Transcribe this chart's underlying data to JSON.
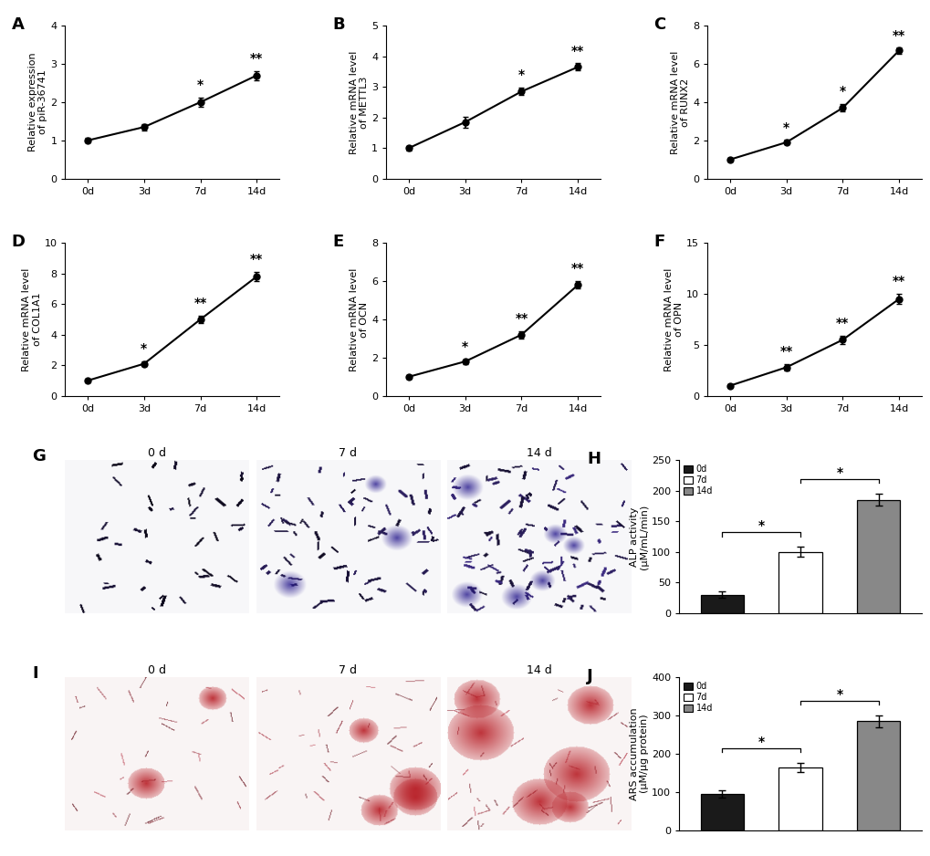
{
  "panels": {
    "A": {
      "label": "A",
      "ylabel": "Relative expression\nof piR-36741",
      "x": [
        0,
        1,
        2,
        3
      ],
      "xtick_labels": [
        "0d",
        "3d",
        "7d",
        "14d"
      ],
      "y": [
        1.0,
        1.35,
        2.0,
        2.7
      ],
      "yerr": [
        0.06,
        0.08,
        0.12,
        0.12
      ],
      "ylim": [
        0,
        4
      ],
      "yticks": [
        0,
        1,
        2,
        3,
        4
      ],
      "sig": [
        "",
        "",
        "*",
        "**"
      ]
    },
    "B": {
      "label": "B",
      "ylabel": "Relative mRNA level\nof METTL3",
      "x": [
        0,
        1,
        2,
        3
      ],
      "xtick_labels": [
        "0d",
        "3d",
        "7d",
        "14d"
      ],
      "y": [
        1.0,
        1.85,
        2.85,
        3.65
      ],
      "yerr": [
        0.07,
        0.18,
        0.12,
        0.12
      ],
      "ylim": [
        0,
        5
      ],
      "yticks": [
        0,
        1,
        2,
        3,
        4,
        5
      ],
      "sig": [
        "",
        "",
        "*",
        "**"
      ]
    },
    "C": {
      "label": "C",
      "ylabel": "Relative mRNA level\nof RUNX2",
      "x": [
        0,
        1,
        2,
        3
      ],
      "xtick_labels": [
        "0d",
        "3d",
        "7d",
        "14d"
      ],
      "y": [
        1.0,
        1.9,
        3.7,
        6.7
      ],
      "yerr": [
        0.1,
        0.12,
        0.2,
        0.15
      ],
      "ylim": [
        0,
        8
      ],
      "yticks": [
        0,
        2,
        4,
        6,
        8
      ],
      "sig": [
        "",
        "*",
        "*",
        "**"
      ]
    },
    "D": {
      "label": "D",
      "ylabel": "Relative mRNA level\nof COL1A1",
      "x": [
        0,
        1,
        2,
        3
      ],
      "xtick_labels": [
        "0d",
        "3d",
        "7d",
        "14d"
      ],
      "y": [
        1.0,
        2.1,
        5.0,
        7.8
      ],
      "yerr": [
        0.1,
        0.15,
        0.25,
        0.3
      ],
      "ylim": [
        0,
        10
      ],
      "yticks": [
        0,
        2,
        4,
        6,
        8,
        10
      ],
      "sig": [
        "",
        "*",
        "**",
        "**"
      ]
    },
    "E": {
      "label": "E",
      "ylabel": "Relative mRNA level\nof OCN",
      "x": [
        0,
        1,
        2,
        3
      ],
      "xtick_labels": [
        "0d",
        "3d",
        "7d",
        "14d"
      ],
      "y": [
        1.0,
        1.8,
        3.2,
        5.8
      ],
      "yerr": [
        0.1,
        0.12,
        0.2,
        0.2
      ],
      "ylim": [
        0,
        8
      ],
      "yticks": [
        0,
        2,
        4,
        6,
        8
      ],
      "sig": [
        "",
        "*",
        "**",
        "**"
      ]
    },
    "F": {
      "label": "F",
      "ylabel": "Relative mRNA level\nof OPN",
      "x": [
        0,
        1,
        2,
        3
      ],
      "xtick_labels": [
        "0d",
        "3d",
        "7d",
        "14d"
      ],
      "y": [
        1.0,
        2.8,
        5.5,
        9.5
      ],
      "yerr": [
        0.12,
        0.3,
        0.4,
        0.5
      ],
      "ylim": [
        0,
        15
      ],
      "yticks": [
        0,
        5,
        10,
        15
      ],
      "sig": [
        "",
        "**",
        "**",
        "**"
      ]
    },
    "H": {
      "label": "H",
      "ylabel": "ALP activity\n(μM/mL/min)",
      "categories": [
        "0d",
        "7d",
        "14d"
      ],
      "y": [
        30,
        100,
        185
      ],
      "yerr": [
        5,
        8,
        10
      ],
      "ylim": [
        0,
        250
      ],
      "yticks": [
        0,
        50,
        100,
        150,
        200,
        250
      ],
      "bar_colors": [
        "#1a1a1a",
        "#ffffff",
        "#888888"
      ],
      "bar_edgecolors": [
        "#000000",
        "#000000",
        "#000000"
      ],
      "sig_pairs": [
        [
          0,
          1,
          "*"
        ],
        [
          1,
          2,
          "*"
        ]
      ],
      "legend_labels": [
        "0d",
        "7d",
        "14d"
      ]
    },
    "J": {
      "label": "J",
      "ylabel": "ARS accumulation\n(μM/μg protein)",
      "categories": [
        "0d",
        "7d",
        "14d"
      ],
      "y": [
        95,
        165,
        285
      ],
      "yerr": [
        10,
        12,
        15
      ],
      "ylim": [
        0,
        400
      ],
      "yticks": [
        0,
        100,
        200,
        300,
        400
      ],
      "bar_colors": [
        "#1a1a1a",
        "#ffffff",
        "#888888"
      ],
      "bar_edgecolors": [
        "#000000",
        "#000000",
        "#000000"
      ],
      "sig_pairs": [
        [
          0,
          1,
          "*"
        ],
        [
          1,
          2,
          "*"
        ]
      ],
      "legend_labels": [
        "0d",
        "7d",
        "14d"
      ]
    }
  },
  "line_color": "#000000",
  "marker": "o",
  "markersize": 5,
  "linewidth": 1.5,
  "fontsize_label": 8,
  "fontsize_tick": 8,
  "fontsize_panel": 13,
  "fontsize_sig": 10,
  "background_color": "#ffffff"
}
